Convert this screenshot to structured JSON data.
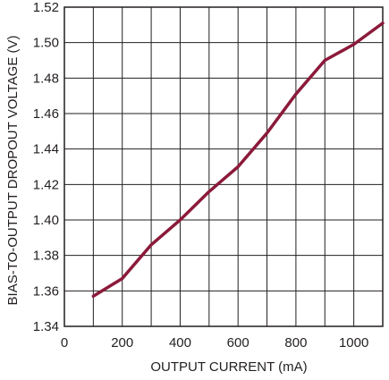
{
  "chart_data": {
    "type": "line",
    "title": "",
    "xlabel": "OUTPUT CURRENT (mA)",
    "ylabel": "BIAS-TO-OUTPUT DROPOUT VOLTAGE (V)",
    "xlim": [
      0,
      1100
    ],
    "ylim": [
      1.34,
      1.52
    ],
    "xticks": [
      0,
      200,
      400,
      600,
      800,
      1000
    ],
    "yticks": [
      1.34,
      1.36,
      1.38,
      1.4,
      1.42,
      1.44,
      1.46,
      1.48,
      1.5,
      1.52
    ],
    "x_tick_labels": [
      "0",
      "200",
      "400",
      "600",
      "800",
      "1000"
    ],
    "y_tick_labels": [
      "1.34",
      "1.36",
      "1.38",
      "1.40",
      "1.42",
      "1.44",
      "1.46",
      "1.48",
      "1.50",
      "1.52"
    ],
    "grid": true,
    "line_color": "#8b1a3a",
    "series": [
      {
        "x": [
          100,
          200,
          300,
          400,
          500,
          600,
          700,
          800,
          900,
          1000,
          1100
        ],
        "y": [
          1.357,
          1.367,
          1.386,
          1.4,
          1.416,
          1.43,
          1.449,
          1.471,
          1.49,
          1.499,
          1.511
        ]
      }
    ]
  }
}
